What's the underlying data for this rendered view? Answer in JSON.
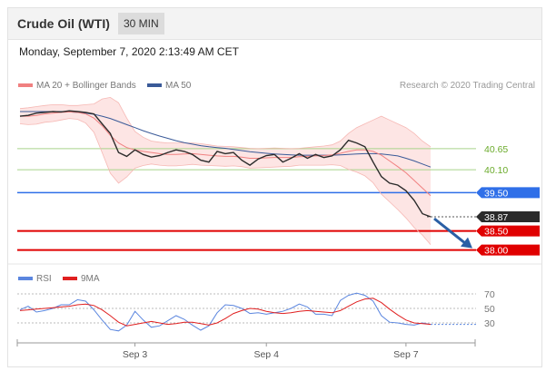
{
  "header": {
    "title": "Crude Oil (WTI)",
    "timeframe": "30 MIN",
    "datetime": "Monday, September 7, 2020 2:13:49 AM CET"
  },
  "legend": {
    "bollinger": "MA 20 + Bollinger Bands",
    "ma50": "MA 50",
    "credit": "Research © 2020 Trading Central"
  },
  "rsi_legend": {
    "rsi": "RSI",
    "ma9": "9MA"
  },
  "colors": {
    "candle": "#2b2b2b",
    "ma20": "#f08080",
    "band_fill": "#fde1df",
    "ma50": "#3a5a98",
    "green": "#6aaa2a",
    "blue_level": "#2f6fe8",
    "red_level": "#e00000",
    "dark_tag": "#2b2b2b",
    "arrow": "#2a5fa5",
    "rsi": "#5b86df",
    "rsi_ma": "#e02020"
  },
  "chart_data": [
    {
      "type": "line",
      "title": "Crude Oil (WTI) 30 MIN",
      "xlabel": "",
      "ylabel": "",
      "x_ticks": [
        "Sep 3",
        "Sep 4",
        "Sep 7"
      ],
      "y_range": [
        37.85,
        42.0
      ],
      "grid": false,
      "levels": [
        {
          "value": 40.65,
          "label": "40.65",
          "color": "#6aaa2a",
          "style": "thin"
        },
        {
          "value": 40.1,
          "label": "40.10",
          "color": "#6aaa2a",
          "style": "thin"
        },
        {
          "value": 39.5,
          "label": "39.50",
          "color": "#2f6fe8",
          "style": "medium"
        },
        {
          "value": 38.87,
          "label": "38.87",
          "color": "#2b2b2b",
          "style": "dotted"
        },
        {
          "value": 38.5,
          "label": "38.50",
          "color": "#e00000",
          "style": "thick"
        },
        {
          "value": 38.0,
          "label": "38.00",
          "color": "#e00000",
          "style": "thick"
        }
      ],
      "series": [
        {
          "name": "Price",
          "values": [
            41.5,
            41.52,
            41.58,
            41.6,
            41.62,
            41.61,
            41.64,
            41.62,
            41.6,
            41.56,
            41.3,
            41.05,
            40.55,
            40.45,
            40.62,
            40.5,
            40.43,
            40.47,
            40.55,
            40.62,
            40.58,
            40.5,
            40.35,
            40.3,
            40.58,
            40.52,
            40.55,
            40.35,
            40.22,
            40.38,
            40.47,
            40.5,
            40.3,
            40.4,
            40.52,
            40.4,
            40.5,
            40.42,
            40.46,
            40.62,
            40.87,
            40.8,
            40.7,
            40.3,
            39.92,
            39.75,
            39.7,
            39.55,
            39.3,
            38.95,
            38.87
          ]
        },
        {
          "name": "MA 20",
          "values": [
            41.5,
            41.5,
            41.52,
            41.56,
            41.58,
            41.6,
            41.61,
            41.6,
            41.56,
            41.45,
            41.25,
            41.0,
            40.8,
            40.68,
            40.62,
            40.58,
            40.55,
            40.52,
            40.5,
            40.5,
            40.51,
            40.52,
            40.5,
            40.48,
            40.46,
            40.45,
            40.45,
            40.43,
            40.4,
            40.4,
            40.41,
            40.42,
            40.42,
            40.42,
            40.44,
            40.45,
            40.46,
            40.47,
            40.49,
            40.53,
            40.58,
            40.62,
            40.62,
            40.58,
            40.48,
            40.33,
            40.18,
            40.02,
            39.82,
            39.62,
            39.42
          ]
        },
        {
          "name": "Upper Bollinger Band",
          "values": [
            41.7,
            41.72,
            41.75,
            41.78,
            41.8,
            41.8,
            41.78,
            41.78,
            41.8,
            41.82,
            41.95,
            41.99,
            41.85,
            41.45,
            41.1,
            40.95,
            40.85,
            40.82,
            40.8,
            40.8,
            40.8,
            40.8,
            40.78,
            40.75,
            40.72,
            40.71,
            40.7,
            40.68,
            40.66,
            40.65,
            40.66,
            40.67,
            40.66,
            40.65,
            40.66,
            40.68,
            40.7,
            40.72,
            40.75,
            40.85,
            41.05,
            41.2,
            41.3,
            41.4,
            41.5,
            41.4,
            41.3,
            41.2,
            41.05,
            40.85,
            40.7
          ]
        },
        {
          "name": "Lower Bollinger Band",
          "values": [
            41.3,
            41.28,
            41.29,
            41.34,
            41.36,
            41.4,
            41.44,
            41.42,
            41.32,
            41.08,
            40.55,
            40.01,
            39.75,
            39.91,
            40.14,
            40.21,
            40.25,
            40.22,
            40.2,
            40.2,
            40.22,
            40.24,
            40.22,
            40.21,
            40.2,
            40.19,
            40.2,
            40.18,
            40.14,
            40.15,
            40.16,
            40.17,
            40.18,
            40.19,
            40.22,
            40.22,
            40.22,
            40.22,
            40.23,
            40.21,
            40.11,
            40.04,
            39.94,
            39.76,
            39.46,
            39.26,
            39.06,
            38.84,
            38.59,
            38.39,
            38.14
          ]
        },
        {
          "name": "MA 50",
          "values": [
            41.62,
            41.62,
            41.62,
            41.62,
            41.62,
            41.62,
            41.61,
            41.6,
            41.58,
            41.55,
            41.5,
            41.44,
            41.36,
            41.28,
            41.2,
            41.12,
            41.05,
            40.98,
            40.92,
            40.86,
            40.81,
            40.77,
            40.73,
            40.7,
            40.68,
            40.66,
            40.63,
            40.6,
            40.57,
            40.55,
            40.53,
            40.51,
            40.5,
            40.49,
            40.48,
            40.48,
            40.48,
            40.48,
            40.48,
            40.49,
            40.5,
            40.51,
            40.52,
            40.52,
            40.51,
            40.49,
            40.46,
            40.4,
            40.33,
            40.25,
            40.17
          ]
        }
      ]
    },
    {
      "type": "line",
      "title": "RSI",
      "y_ticks": [
        70,
        50,
        30
      ],
      "y_range": [
        10,
        75
      ],
      "grid": false,
      "series": [
        {
          "name": "RSI",
          "values": [
            48,
            53,
            45,
            47,
            50,
            55,
            55,
            62,
            60,
            48,
            34,
            21,
            19,
            27,
            46,
            34,
            24,
            26,
            33,
            40,
            35,
            27,
            20,
            26,
            44,
            55,
            54,
            50,
            43,
            44,
            42,
            44,
            46,
            50,
            56,
            52,
            42,
            42,
            40,
            61,
            68,
            71,
            68,
            60,
            40,
            31,
            30,
            28,
            27,
            30,
            28
          ]
        },
        {
          "name": "9MA",
          "values": [
            47,
            48,
            49,
            50,
            51,
            52,
            53,
            55,
            56,
            54,
            48,
            40,
            31,
            26,
            28,
            30,
            32,
            30,
            28,
            29,
            31,
            31,
            29,
            27,
            30,
            36,
            43,
            47,
            50,
            49,
            46,
            44,
            43,
            44,
            46,
            47,
            46,
            45,
            44,
            47,
            53,
            59,
            63,
            64,
            58,
            49,
            41,
            34,
            30,
            29,
            28
          ]
        }
      ]
    }
  ]
}
